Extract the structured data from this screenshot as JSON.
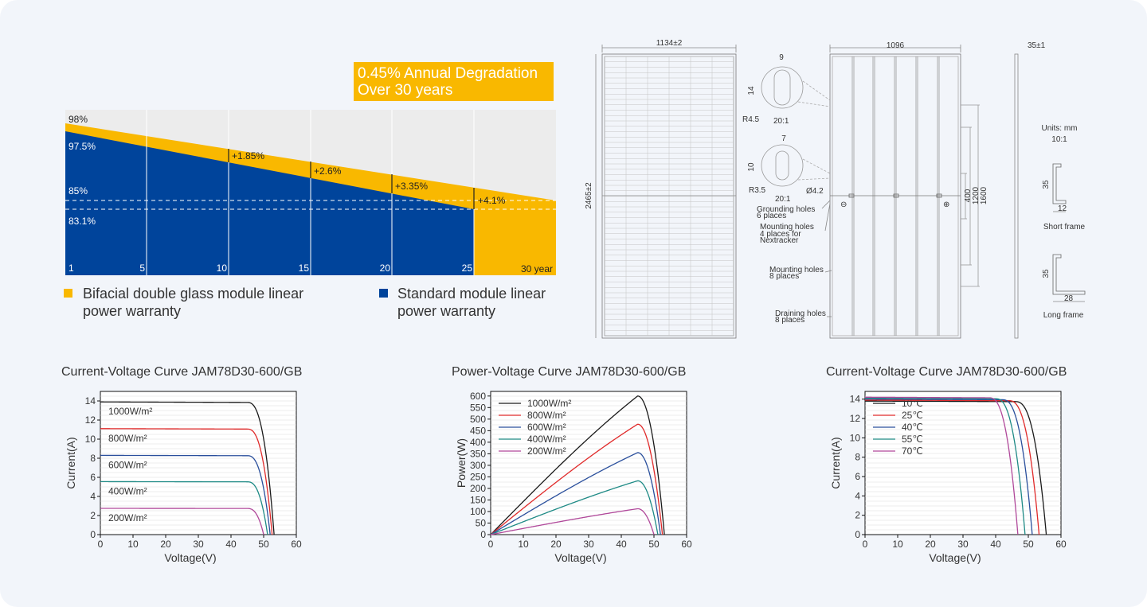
{
  "warranty": {
    "banner_line1": "0.45% Annual Degradation",
    "banner_line2": "Over 30 years",
    "y_labels": [
      "98%",
      "97.5%",
      "85%",
      "83.1%"
    ],
    "x_labels": [
      "1",
      "5",
      "10",
      "15",
      "20",
      "25",
      "30 year"
    ],
    "gains": [
      "+1.85%",
      "+2.6%",
      "+3.35%",
      "+4.1%"
    ],
    "legend_bifacial_line1": "Bifacial double glass module linear",
    "legend_bifacial_line2": "power warranty",
    "legend_standard_line1": "Standard module linear",
    "legend_standard_line2": "power warranty",
    "colors": {
      "bifacial": "#f9b800",
      "standard": "#00449b"
    }
  },
  "drawing": {
    "front_width": "1134±2",
    "front_height": "2465±2",
    "detail1_w": "9",
    "detail1_h": "14",
    "detail1_r": "R4.5",
    "detail1_scale": "20:1",
    "detail2_w": "7",
    "detail2_h": "10",
    "detail2_r": "R3.5",
    "detail2_scale": "20:1",
    "detail2_dia": "Ø4.2",
    "back_width": "1096",
    "side_thickness": "35±1",
    "dim_400": "400",
    "dim_1200": "1200",
    "dim_1600": "1600",
    "grounding_1": "Grounding holes",
    "grounding_2": "6 places",
    "mount4_1": "Mounting holes",
    "mount4_2": "4 places for",
    "mount4_3": "Nextracker",
    "mount8_1": "Mounting holes",
    "mount8_2": "8 places",
    "drain_1": "Draining holes",
    "drain_2": "8 places",
    "units": "Units: mm",
    "units_scale": "10:1",
    "short_h": "35",
    "short_w": "12",
    "short_label": "Short frame",
    "long_h": "35",
    "long_w": "28",
    "long_label": "Long frame",
    "minus": "⊖",
    "plus": "⊕"
  },
  "chart_data": [
    {
      "type": "line",
      "title": "Current-Voltage Curve    JAM78D30-600/GB",
      "xlabel": "Voltage(V)",
      "ylabel": "Current(A)",
      "xlim": [
        0,
        60
      ],
      "ylim": [
        0,
        15
      ],
      "xticks": [
        "0",
        "10",
        "20",
        "30",
        "40",
        "50",
        "60"
      ],
      "yticks": [
        "0",
        "2",
        "4",
        "6",
        "8",
        "10",
        "12",
        "14"
      ],
      "series": [
        {
          "name": "1000W/m²",
          "color": "#1a1a1a",
          "isc": 13.9,
          "voc": 53.2,
          "knee": 45
        },
        {
          "name": "800W/m²",
          "color": "#e02a2a",
          "isc": 11.1,
          "voc": 52.6,
          "knee": 45
        },
        {
          "name": "600W/m²",
          "color": "#2a4f9c",
          "isc": 8.3,
          "voc": 52.0,
          "knee": 45
        },
        {
          "name": "400W/m²",
          "color": "#1e8a85",
          "isc": 5.55,
          "voc": 51.2,
          "knee": 45
        },
        {
          "name": "200W/m²",
          "color": "#b0489a",
          "isc": 2.75,
          "voc": 50.0,
          "knee": 45
        }
      ]
    },
    {
      "type": "line",
      "title": "Power-Voltage Curve    JAM78D30-600/GB",
      "xlabel": "Voltage(V)",
      "ylabel": "Power(W)",
      "xlim": [
        0,
        60
      ],
      "ylim": [
        0,
        620
      ],
      "xticks": [
        "0",
        "10",
        "20",
        "30",
        "40",
        "50",
        "60"
      ],
      "yticks": [
        "0",
        "50",
        "100",
        "150",
        "200",
        "250",
        "300",
        "350",
        "400",
        "450",
        "500",
        "550",
        "600"
      ],
      "series": [
        {
          "name": "1000W/m²",
          "color": "#1a1a1a",
          "vmp": 45,
          "pmax": 600,
          "voc": 53.2
        },
        {
          "name": "800W/m²",
          "color": "#e02a2a",
          "vmp": 45,
          "pmax": 478,
          "voc": 52.6
        },
        {
          "name": "600W/m²",
          "color": "#2a4f9c",
          "vmp": 45,
          "pmax": 355,
          "voc": 52.0
        },
        {
          "name": "400W/m²",
          "color": "#1e8a85",
          "vmp": 45,
          "pmax": 233,
          "voc": 51.2
        },
        {
          "name": "200W/m²",
          "color": "#b0489a",
          "vmp": 45,
          "pmax": 112,
          "voc": 50.0
        }
      ]
    },
    {
      "type": "line",
      "title": "Current-Voltage Curve    JAM78D30-600/GB",
      "xlabel": "Voltage(V)",
      "ylabel": "Current(A)",
      "xlim": [
        0,
        60
      ],
      "ylim": [
        0,
        14.8
      ],
      "xticks": [
        "0",
        "10",
        "20",
        "30",
        "40",
        "50",
        "60"
      ],
      "yticks": [
        "0",
        "2",
        "4",
        "6",
        "8",
        "10",
        "12",
        "14"
      ],
      "series": [
        {
          "name": "10℃",
          "color": "#1a1a1a",
          "isc": 13.8,
          "voc": 55.5,
          "knee": 46
        },
        {
          "name": "25℃",
          "color": "#e02a2a",
          "isc": 13.9,
          "voc": 53.3,
          "knee": 44
        },
        {
          "name": "40℃",
          "color": "#2a4f9c",
          "isc": 14.0,
          "voc": 51.2,
          "knee": 42
        },
        {
          "name": "55℃",
          "color": "#1e8a85",
          "isc": 14.1,
          "voc": 49.0,
          "knee": 40
        },
        {
          "name": "70℃",
          "color": "#b0489a",
          "isc": 14.2,
          "voc": 46.8,
          "knee": 38
        }
      ]
    }
  ]
}
